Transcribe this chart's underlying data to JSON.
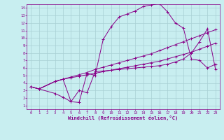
{
  "xlabel": "Windchill (Refroidissement éolien,°C)",
  "xlim": [
    -0.5,
    23.5
  ],
  "ylim": [
    0.5,
    14.5
  ],
  "xticks": [
    0,
    1,
    2,
    3,
    4,
    5,
    6,
    7,
    8,
    9,
    10,
    11,
    12,
    13,
    14,
    15,
    16,
    17,
    18,
    19,
    20,
    21,
    22,
    23
  ],
  "yticks": [
    1,
    2,
    3,
    4,
    5,
    6,
    7,
    8,
    9,
    10,
    11,
    12,
    13,
    14
  ],
  "background_color": "#c8eef0",
  "grid_color": "#a8cfd4",
  "line_color": "#880088",
  "lines": [
    {
      "x": [
        0,
        1,
        3,
        4,
        5,
        6,
        7,
        8,
        9,
        10,
        11,
        12,
        13,
        14,
        15,
        16,
        17,
        18,
        19,
        20,
        21,
        22,
        23
      ],
      "y": [
        3.5,
        3.2,
        4.2,
        4.5,
        1.5,
        1.4,
        5.3,
        5.0,
        9.8,
        11.5,
        12.8,
        13.2,
        13.6,
        14.2,
        14.4,
        14.6,
        13.5,
        12.0,
        11.3,
        7.2,
        7.0,
        6.0,
        6.5
      ]
    },
    {
      "x": [
        0,
        1,
        3,
        4,
        5,
        6,
        7,
        8,
        9,
        10,
        11,
        12,
        13,
        14,
        15,
        16,
        17,
        18,
        19,
        20,
        21,
        22,
        23
      ],
      "y": [
        3.5,
        3.2,
        4.2,
        4.5,
        4.8,
        5.1,
        5.4,
        5.8,
        6.1,
        6.4,
        6.7,
        7.0,
        7.3,
        7.6,
        7.9,
        8.3,
        8.7,
        9.1,
        9.5,
        9.9,
        10.3,
        10.7,
        11.1
      ]
    },
    {
      "x": [
        0,
        1,
        3,
        4,
        5,
        6,
        7,
        8,
        9,
        10,
        11,
        12,
        13,
        14,
        15,
        16,
        17,
        18,
        19,
        20,
        21,
        22,
        23
      ],
      "y": [
        3.5,
        3.2,
        4.2,
        4.5,
        4.7,
        4.9,
        5.1,
        5.3,
        5.5,
        5.7,
        5.9,
        6.1,
        6.3,
        6.5,
        6.7,
        6.9,
        7.2,
        7.5,
        7.8,
        8.1,
        8.5,
        8.9,
        9.3
      ]
    },
    {
      "x": [
        0,
        1,
        3,
        4,
        5,
        6,
        7,
        8,
        9,
        10,
        11,
        12,
        13,
        14,
        15,
        16,
        17,
        18,
        19,
        20,
        21,
        22,
        23
      ],
      "y": [
        3.5,
        3.2,
        2.6,
        2.1,
        1.5,
        3.0,
        2.7,
        5.5,
        5.6,
        5.7,
        5.8,
        5.9,
        6.0,
        6.1,
        6.2,
        6.3,
        6.5,
        6.8,
        7.2,
        8.0,
        9.5,
        11.2,
        5.8
      ]
    }
  ]
}
